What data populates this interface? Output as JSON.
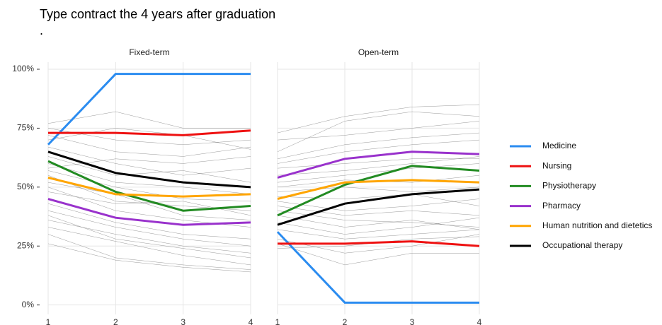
{
  "title": "Type contract the 4 years after graduation",
  "subtitle": ".",
  "chart_data": [
    {
      "type": "line",
      "title": "Fixed-term",
      "x": [
        1,
        2,
        3,
        4
      ],
      "xlim": [
        1,
        4
      ],
      "xticks": [
        1,
        2,
        3,
        4
      ],
      "ylim": [
        -4,
        103
      ],
      "yticks": [
        {
          "value": 0,
          "label": "0%"
        },
        {
          "value": 25,
          "label": "25%"
        },
        {
          "value": 50,
          "label": "50%"
        },
        {
          "value": 75,
          "label": "75%"
        },
        {
          "value": 100,
          "label": "100%"
        }
      ],
      "grid": true,
      "series": [
        {
          "color": "#555555",
          "values": [
            77,
            82,
            75,
            75
          ]
        },
        {
          "color": "#555555",
          "values": [
            75,
            70,
            68,
            70
          ]
        },
        {
          "color": "#555555",
          "values": [
            72,
            65,
            63,
            67
          ]
        },
        {
          "color": "#555555",
          "values": [
            70,
            75,
            72,
            66
          ]
        },
        {
          "color": "#555555",
          "values": [
            67,
            60,
            55,
            58
          ]
        },
        {
          "color": "#555555",
          "values": [
            63,
            55,
            57,
            52
          ]
        },
        {
          "color": "#555555",
          "values": [
            60,
            52,
            50,
            47
          ]
        },
        {
          "color": "#555555",
          "values": [
            57,
            50,
            45,
            44
          ]
        },
        {
          "color": "#555555",
          "values": [
            55,
            44,
            42,
            40
          ]
        },
        {
          "color": "#555555",
          "values": [
            52,
            47,
            38,
            36
          ]
        },
        {
          "color": "#555555",
          "values": [
            50,
            40,
            36,
            33
          ]
        },
        {
          "color": "#555555",
          "values": [
            48,
            43,
            44,
            38
          ]
        },
        {
          "color": "#555555",
          "values": [
            43,
            35,
            30,
            28
          ]
        },
        {
          "color": "#555555",
          "values": [
            40,
            33,
            28,
            25
          ]
        },
        {
          "color": "#555555",
          "values": [
            38,
            28,
            24,
            20
          ]
        },
        {
          "color": "#555555",
          "values": [
            36,
            30,
            25,
            22
          ]
        },
        {
          "color": "#555555",
          "values": [
            33,
            27,
            21,
            17
          ]
        },
        {
          "color": "#555555",
          "values": [
            30,
            20,
            17,
            15
          ]
        },
        {
          "color": "#555555",
          "values": [
            26,
            19,
            16,
            14
          ]
        },
        {
          "color": "#555555",
          "values": [
            58,
            62,
            60,
            63
          ]
        },
        {
          "name": "Medicine",
          "color": "#2b8cf0",
          "values": [
            68,
            98,
            98,
            98
          ]
        },
        {
          "name": "Nursing",
          "color": "#ee1111",
          "values": [
            73,
            73,
            72,
            74
          ]
        },
        {
          "name": "Physiotherapy",
          "color": "#228b22",
          "values": [
            61,
            48,
            40,
            42
          ]
        },
        {
          "name": "Pharmacy",
          "color": "#9932cc",
          "values": [
            45,
            37,
            34,
            35
          ]
        },
        {
          "name": "Human nutrition and dietetics",
          "color": "#ffa500",
          "values": [
            54,
            47,
            46,
            47
          ]
        },
        {
          "name": "Occupational therapy",
          "color": "#000000",
          "values": [
            65,
            56,
            52,
            50
          ]
        }
      ]
    },
    {
      "type": "line",
      "title": "Open-term",
      "x": [
        1,
        2,
        3,
        4
      ],
      "xlim": [
        1,
        4
      ],
      "xticks": [
        1,
        2,
        3,
        4
      ],
      "ylim": [
        -4,
        103
      ],
      "grid": true,
      "series": [
        {
          "color": "#555555",
          "values": [
            73,
            80,
            84,
            85
          ]
        },
        {
          "color": "#555555",
          "values": [
            70,
            72,
            75,
            78
          ]
        },
        {
          "color": "#555555",
          "values": [
            65,
            78,
            82,
            80
          ]
        },
        {
          "color": "#555555",
          "values": [
            62,
            68,
            71,
            73
          ]
        },
        {
          "color": "#555555",
          "values": [
            60,
            65,
            68,
            70
          ]
        },
        {
          "color": "#555555",
          "values": [
            58,
            60,
            62,
            62
          ]
        },
        {
          "color": "#555555",
          "values": [
            55,
            57,
            60,
            63
          ]
        },
        {
          "color": "#555555",
          "values": [
            52,
            55,
            58,
            60
          ]
        },
        {
          "color": "#555555",
          "values": [
            50,
            53,
            52,
            55
          ]
        },
        {
          "color": "#555555",
          "values": [
            48,
            50,
            48,
            50
          ]
        },
        {
          "color": "#555555",
          "values": [
            46,
            45,
            47,
            42
          ]
        },
        {
          "color": "#555555",
          "values": [
            44,
            40,
            42,
            45
          ]
        },
        {
          "color": "#555555",
          "values": [
            42,
            38,
            40,
            38
          ]
        },
        {
          "color": "#555555",
          "values": [
            40,
            36,
            35,
            33
          ]
        },
        {
          "color": "#555555",
          "values": [
            38,
            33,
            36,
            32
          ]
        },
        {
          "color": "#555555",
          "values": [
            35,
            30,
            33,
            37
          ]
        },
        {
          "color": "#555555",
          "values": [
            32,
            28,
            30,
            32
          ]
        },
        {
          "color": "#555555",
          "values": [
            28,
            22,
            25,
            30
          ]
        },
        {
          "color": "#555555",
          "values": [
            26,
            17,
            22,
            22
          ]
        },
        {
          "color": "#555555",
          "values": [
            24,
            25,
            28,
            29
          ]
        },
        {
          "color": "#2b8cf0",
          "values": [
            31,
            1,
            1,
            1
          ]
        },
        {
          "color": "#ee1111",
          "values": [
            26,
            26,
            27,
            25
          ]
        },
        {
          "color": "#228b22",
          "values": [
            38,
            51,
            59,
            57
          ]
        },
        {
          "color": "#9932cc",
          "values": [
            54,
            62,
            65,
            64
          ]
        },
        {
          "color": "#ffa500",
          "values": [
            45,
            52,
            53,
            52
          ]
        },
        {
          "color": "#000000",
          "values": [
            34,
            43,
            47,
            49
          ]
        }
      ]
    }
  ]
}
